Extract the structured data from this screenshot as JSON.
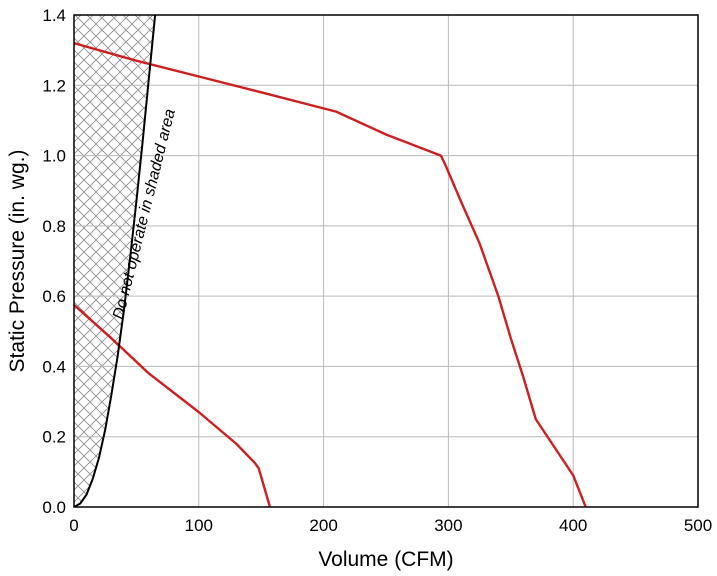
{
  "chart_data": {
    "type": "line",
    "title": "",
    "xlabel": "Volume (CFM)",
    "ylabel": "Static Pressure (in. wg.)",
    "xlim": [
      0,
      500
    ],
    "ylim": [
      0,
      1.4
    ],
    "xticks": [
      0,
      100,
      200,
      300,
      400,
      500
    ],
    "yticks": [
      0.0,
      0.2,
      0.4,
      0.6,
      0.8,
      1.0,
      1.2,
      1.4
    ],
    "xtick_labels": [
      "0",
      "100",
      "200",
      "300",
      "400",
      "500"
    ],
    "ytick_labels": [
      "0.0",
      "0.2",
      "0.4",
      "0.6",
      "0.8",
      "1.0",
      "1.2",
      "1.4"
    ],
    "grid": true,
    "series": [
      {
        "color": "#cc1f1f",
        "x": [
          0,
          30,
          60,
          100,
          130,
          145,
          148,
          157
        ],
        "y": [
          0.575,
          0.48,
          0.38,
          0.27,
          0.18,
          0.125,
          0.11,
          0.0
        ]
      },
      {
        "color": "#cc1f1f",
        "x": [
          0,
          50,
          100,
          150,
          210,
          250,
          294,
          298,
          310,
          325,
          340,
          350,
          360,
          370,
          385,
          400,
          410
        ],
        "y": [
          1.32,
          1.27,
          1.225,
          1.18,
          1.125,
          1.06,
          1.0,
          0.97,
          0.87,
          0.75,
          0.6,
          0.48,
          0.37,
          0.25,
          0.17,
          0.09,
          0.0
        ]
      },
      {
        "color": "#000000",
        "x": [
          0,
          5,
          10,
          15,
          20,
          25,
          30,
          35,
          40,
          45,
          50,
          55,
          60,
          65
        ],
        "y": [
          0.0,
          0.01,
          0.035,
          0.08,
          0.14,
          0.22,
          0.32,
          0.43,
          0.56,
          0.71,
          0.87,
          1.04,
          1.22,
          1.4
        ]
      }
    ],
    "shaded_region": {
      "boundary": "left of black curve",
      "pattern": "crosshatch",
      "color": "#8a8a8a"
    },
    "annotations": [
      {
        "text": "Do not operate in shaded area",
        "x": 60,
        "y": 0.83,
        "rotation_deg": -76
      }
    ]
  }
}
